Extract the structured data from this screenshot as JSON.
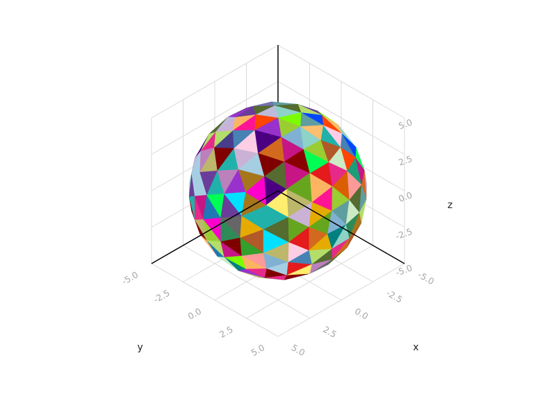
{
  "chart_data": {
    "type": "mesh3d",
    "shape": "geodesic sphere (icosphere, frequency 2)",
    "radius": 5,
    "center": [
      0,
      0,
      0
    ],
    "axes": {
      "x": {
        "title": "x",
        "range": [
          -5,
          5
        ],
        "tick_values": [
          -5,
          -2.5,
          0,
          2.5,
          5
        ],
        "tick_labels": [
          "-5.0",
          "-2.5",
          "0.0",
          "2.5",
          "5.0"
        ]
      },
      "y": {
        "title": "y",
        "range": [
          -5,
          5
        ],
        "tick_values": [
          -5,
          -2.5,
          0,
          2.5,
          5
        ],
        "tick_labels": [
          "-5.0",
          "-2.5",
          "0.0",
          "2.5",
          "5.0"
        ]
      },
      "z": {
        "title": "z",
        "range": [
          -5,
          5
        ],
        "tick_values": [
          -5,
          -2.5,
          0,
          2.5,
          5
        ],
        "tick_labels": [
          "-5.0",
          "-2.5",
          "0.0",
          "2.5",
          "5.0"
        ]
      }
    },
    "grid": true,
    "face_coloring": "random distinct color per triangular face"
  },
  "colors": {
    "grid": "#d9d9d9",
    "axis": "#000000",
    "tick_text": "#a6a6a6",
    "title_text": "#222222",
    "face_palette": [
      "#e41a1c",
      "#1f78b4",
      "#33a02c",
      "#ff7f00",
      "#6a3d9a",
      "#b15928",
      "#a6cee3",
      "#b2df8a",
      "#fb9a99",
      "#fdbf6f",
      "#cab2d6",
      "#8dd3c7",
      "#bebada",
      "#80b1d3",
      "#fdb462",
      "#b3de69",
      "#fccde5",
      "#bc80bd",
      "#ccebc5",
      "#ffed6f",
      "#1b9e77",
      "#d95f02",
      "#7570b3",
      "#e7298a",
      "#66a61e",
      "#e6ab02",
      "#a6761d",
      "#666666",
      "#0047ff",
      "#00e0ff",
      "#8b0000",
      "#00ff55",
      "#ff00cc",
      "#7cfc00",
      "#4b0082",
      "#20b2aa",
      "#ff4500",
      "#2e8b57",
      "#9932cc",
      "#c71585",
      "#556b2f",
      "#4682b4",
      "#d2691e",
      "#5f9ea0",
      "#800000",
      "#9acd32",
      "#483d8b",
      "#ff1493",
      "#008080",
      "#bdb76b"
    ]
  }
}
